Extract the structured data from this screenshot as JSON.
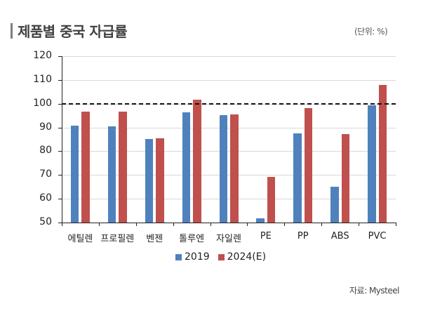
{
  "header": {
    "title": "제품별 중국 자급률",
    "unit": "(단위: %)"
  },
  "footer": {
    "source": "자료: Mysteel"
  },
  "colors": {
    "series_2019": "#4F81BD",
    "series_2024E": "#C0504D",
    "reference_line": "#111111",
    "gridline": "#D9D9D9"
  },
  "chart_data": {
    "type": "bar",
    "title": "제품별 중국 자급률",
    "unit": "(단위: %)",
    "xlabel": "",
    "ylabel": "",
    "categories": [
      "에틸렌",
      "프로필렌",
      "벤젠",
      "톨루엔",
      "자일렌",
      "PE",
      "PP",
      "ABS",
      "PVC"
    ],
    "series": [
      {
        "name": "2019",
        "color": "#4F81BD",
        "values": [
          90.8,
          90.4,
          85.2,
          96.3,
          95.1,
          51.7,
          87.6,
          65.1,
          99.3
        ]
      },
      {
        "name": "2024(E)",
        "color": "#C0504D",
        "values": [
          96.6,
          96.6,
          85.5,
          101.7,
          95.6,
          69.2,
          98.2,
          87.1,
          108.0
        ]
      }
    ],
    "ylim": [
      50,
      120
    ],
    "yticks": [
      50,
      60,
      70,
      80,
      90,
      100,
      110,
      120
    ],
    "grid": true,
    "reference_line": {
      "y": 100,
      "style": "dashed"
    },
    "legend_position": "bottom",
    "source": "자료: Mysteel"
  },
  "legend": {
    "items": [
      {
        "label": "2019"
      },
      {
        "label": "2024(E)"
      }
    ]
  }
}
